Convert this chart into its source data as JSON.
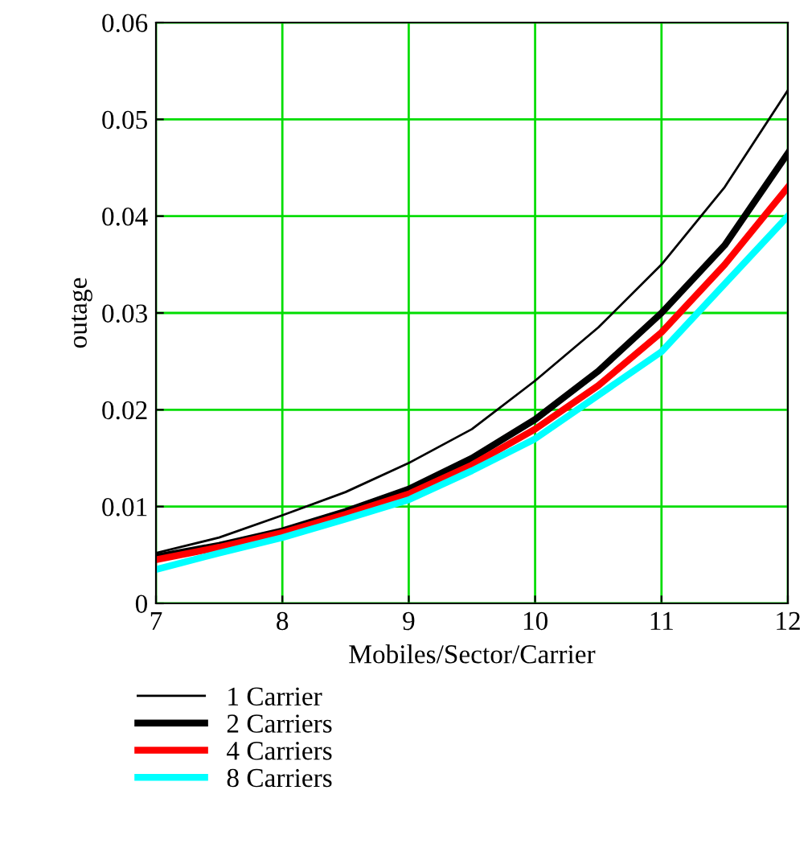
{
  "chart_data": {
    "type": "line",
    "xlabel": "Mobiles/Sector/Carrier",
    "ylabel": "outage",
    "x": [
      7,
      7.5,
      8,
      8.5,
      9,
      9.5,
      10,
      10.5,
      11,
      11.5,
      12
    ],
    "xlim": [
      7,
      12
    ],
    "xticks": [
      7,
      8,
      9,
      10,
      11,
      12
    ],
    "ylim": [
      0,
      0.06
    ],
    "yticks": [
      0,
      0.01,
      0.02,
      0.03,
      0.04,
      0.05,
      0.06
    ],
    "grid": true,
    "legend": "bottom",
    "marker": "none",
    "line_style": "solid",
    "series": [
      {
        "name": "1 Carrier",
        "color": "#000000",
        "values": [
          0.0052,
          0.0068,
          0.0091,
          0.0115,
          0.0145,
          0.018,
          0.023,
          0.0285,
          0.035,
          0.043,
          0.053
        ]
      },
      {
        "name": "2 Carriers",
        "color": "#000000",
        "values": [
          0.0048,
          0.006,
          0.0075,
          0.0095,
          0.0118,
          0.015,
          0.019,
          0.024,
          0.03,
          0.037,
          0.0465
        ]
      },
      {
        "name": "4 Carriers",
        "color": "#ff0000",
        "values": [
          0.0045,
          0.0058,
          0.0073,
          0.0092,
          0.0113,
          0.0143,
          0.018,
          0.0225,
          0.028,
          0.035,
          0.043
        ]
      },
      {
        "name": "8 Carriers",
        "color": "#00ffff",
        "values": [
          0.0035,
          0.0052,
          0.0068,
          0.0087,
          0.0107,
          0.0137,
          0.017,
          0.0215,
          0.026,
          0.033,
          0.04
        ]
      }
    ]
  }
}
